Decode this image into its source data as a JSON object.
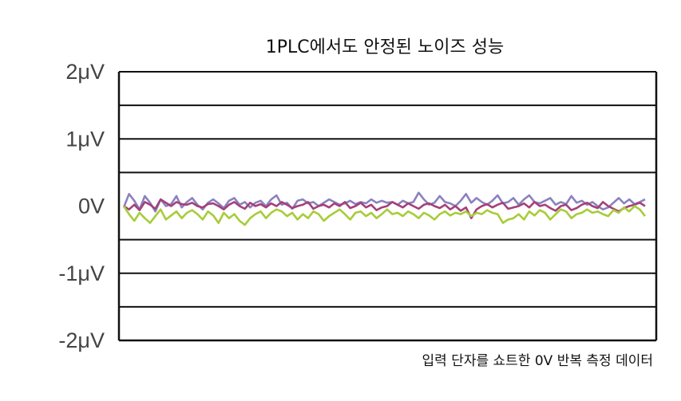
{
  "chart_data": {
    "type": "line",
    "title": "1PLC에서도 안정된 노이즈 성능",
    "caption": "입력 단자를 쇼트한 0V 반복 측정 데이터",
    "y_unit": "μV",
    "ylim": [
      -2,
      2
    ],
    "y_ticks": [
      {
        "value": 2,
        "label": "2μV"
      },
      {
        "value": 1,
        "label": "1μV"
      },
      {
        "value": 0,
        "label": "0V"
      },
      {
        "value": -1,
        "label": "-1μV"
      },
      {
        "value": -2,
        "label": "-2μV"
      }
    ],
    "grid_lines": [
      2,
      1.5,
      1,
      0.5,
      -0.5,
      -1,
      -1.5,
      -2
    ],
    "grid": true,
    "legend": "none",
    "x_count": 100,
    "series": [
      {
        "color": "#8a82bf",
        "values": [
          -0.02,
          0.18,
          0.08,
          -0.05,
          0.15,
          0.05,
          -0.08,
          0.1,
          0.0,
          0.03,
          0.15,
          -0.02,
          0.06,
          0.12,
          0.02,
          -0.05,
          0.05,
          0.1,
          0.04,
          -0.03,
          0.08,
          0.12,
          0.02,
          0.06,
          -0.02,
          0.05,
          0.08,
          0.0,
          0.1,
          0.16,
          0.02,
          0.05,
          -0.04,
          0.08,
          0.1,
          0.04,
          0.06,
          0.0,
          0.05,
          0.1,
          0.06,
          0.02,
          0.04,
          0.08,
          0.03,
          0.06,
          0.04,
          0.1,
          0.05,
          0.08,
          0.05,
          0.06,
          0.02,
          0.08,
          0.04,
          0.06,
          0.2,
          0.1,
          0.02,
          0.05,
          0.15,
          0.06,
          0.04,
          0.0,
          0.08,
          0.18,
          0.05,
          0.12,
          0.06,
          0.02,
          0.08,
          0.16,
          0.04,
          0.06,
          0.12,
          0.02,
          0.1,
          0.16,
          0.06,
          0.04,
          0.08,
          0.12,
          0.02,
          0.06,
          0.03,
          0.15,
          0.05,
          0.08,
          0.02,
          0.06,
          0.0,
          -0.05,
          -0.02,
          0.05,
          0.12,
          0.04,
          0.1,
          0.03,
          0.06,
          0.1
        ]
      },
      {
        "color": "#a5407a",
        "values": [
          0.0,
          -0.05,
          0.02,
          -0.06,
          0.06,
          0.02,
          -0.04,
          0.1,
          0.05,
          0.0,
          0.06,
          0.03,
          0.02,
          0.05,
          0.0,
          -0.02,
          0.03,
          0.04,
          0.0,
          -0.05,
          0.02,
          0.06,
          0.0,
          -0.04,
          0.05,
          0.0,
          0.03,
          -0.02,
          0.04,
          0.0,
          0.06,
          0.02,
          -0.03,
          0.0,
          0.02,
          0.06,
          -0.04,
          0.0,
          0.02,
          -0.02,
          0.04,
          0.0,
          0.06,
          -0.03,
          0.0,
          0.05,
          -0.02,
          0.02,
          -0.06,
          -0.02,
          0.0,
          0.06,
          0.02,
          -0.02,
          0.04,
          0.0,
          -0.04,
          0.02,
          0.04,
          0.0,
          -0.03,
          0.02,
          -0.05,
          0.0,
          -0.07,
          -0.02,
          -0.18,
          -0.05,
          0.0,
          0.03,
          -0.02,
          0.02,
          0.05,
          -0.04,
          -0.02,
          0.0,
          0.04,
          -0.02,
          0.06,
          0.0,
          0.02,
          -0.03,
          -0.07,
          0.0,
          0.02,
          -0.06,
          -0.03,
          0.02,
          0.05,
          0.0,
          -0.03,
          0.06,
          0.0,
          -0.04,
          -0.08,
          -0.03,
          0.0,
          0.02,
          0.05,
          0.0
        ]
      },
      {
        "color": "#a8cc3a",
        "values": [
          0.0,
          -0.12,
          -0.22,
          -0.1,
          -0.18,
          -0.25,
          -0.15,
          -0.05,
          -0.2,
          -0.14,
          -0.08,
          -0.18,
          -0.1,
          -0.06,
          -0.12,
          -0.2,
          -0.08,
          -0.14,
          -0.25,
          -0.1,
          -0.18,
          -0.12,
          -0.22,
          -0.28,
          -0.18,
          -0.12,
          -0.08,
          -0.18,
          -0.1,
          -0.05,
          -0.08,
          -0.15,
          -0.1,
          -0.2,
          -0.12,
          -0.18,
          -0.08,
          -0.12,
          -0.22,
          -0.15,
          -0.1,
          -0.05,
          -0.12,
          -0.2,
          -0.1,
          -0.08,
          -0.15,
          -0.1,
          -0.18,
          -0.12,
          -0.05,
          -0.12,
          -0.1,
          -0.15,
          -0.08,
          -0.12,
          -0.18,
          -0.1,
          -0.14,
          -0.2,
          -0.12,
          -0.08,
          -0.14,
          -0.1,
          -0.12,
          -0.08,
          -0.15,
          -0.1,
          -0.12,
          -0.06,
          -0.1,
          -0.12,
          -0.25,
          -0.2,
          -0.18,
          -0.12,
          -0.2,
          -0.08,
          -0.14,
          -0.06,
          -0.1,
          -0.2,
          -0.12,
          -0.05,
          -0.08,
          -0.18,
          -0.12,
          -0.1,
          -0.05,
          -0.1,
          -0.08,
          -0.12,
          -0.15,
          -0.06,
          -0.1,
          -0.02,
          -0.08,
          0.0,
          -0.05,
          -0.15
        ]
      }
    ]
  }
}
